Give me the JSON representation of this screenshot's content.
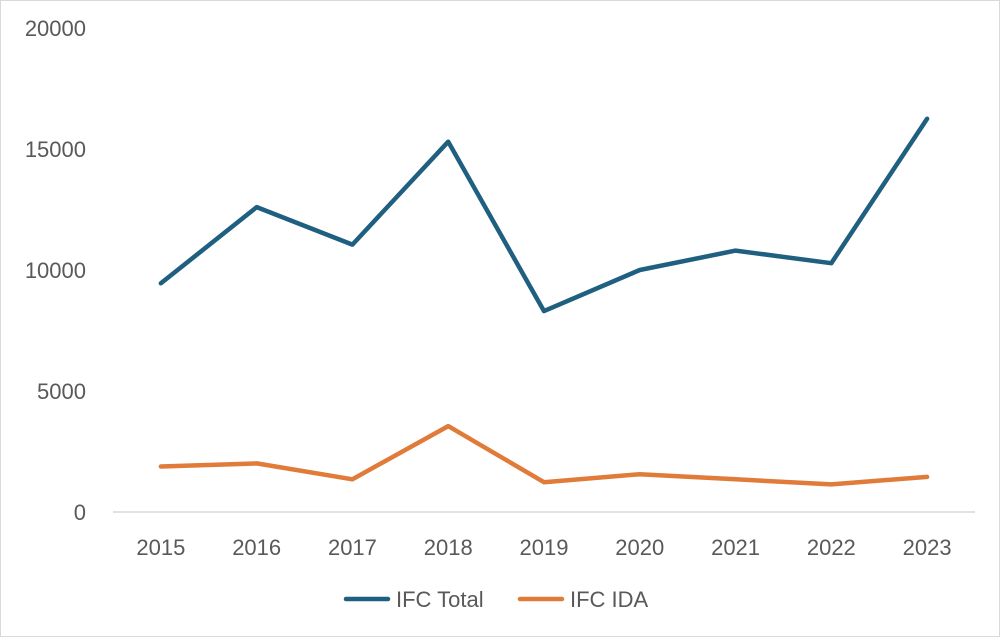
{
  "chart_data": {
    "type": "line",
    "title": "",
    "xlabel": "",
    "ylabel": "",
    "categories": [
      "2015",
      "2016",
      "2017",
      "2018",
      "2019",
      "2020",
      "2021",
      "2022",
      "2023"
    ],
    "ylim": [
      0,
      20000
    ],
    "yticks": [
      "0",
      "5000",
      "10000",
      "15000",
      "20000"
    ],
    "grid": false,
    "legend_position": "bottom",
    "series": [
      {
        "name": "IFC Total",
        "color": "#1f5f7f",
        "values": [
          9450,
          12600,
          11050,
          15300,
          8300,
          10000,
          10800,
          10280,
          16250
        ]
      },
      {
        "name": "IFC IDA",
        "color": "#e07b39",
        "values": [
          1880,
          2010,
          1350,
          3550,
          1230,
          1560,
          1350,
          1140,
          1450
        ]
      }
    ]
  }
}
